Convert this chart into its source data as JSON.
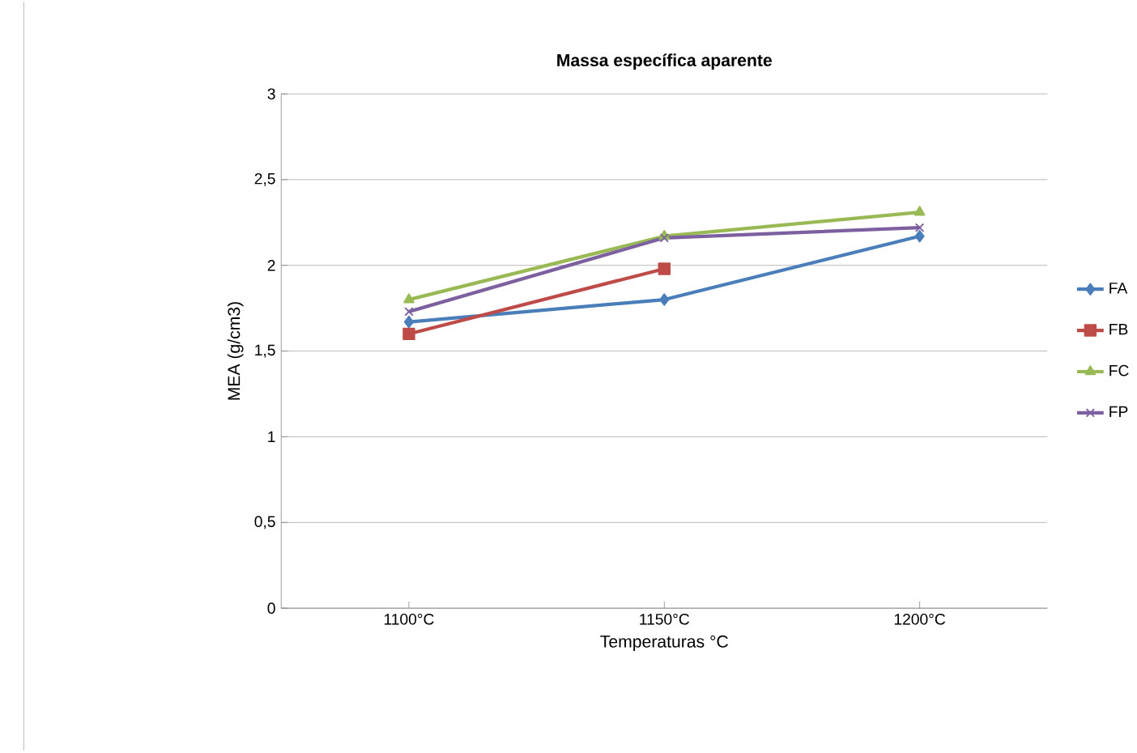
{
  "chart_data": {
    "type": "line",
    "title": "Massa específica aparente",
    "xlabel": "Temperaturas °C",
    "ylabel": "MEA (g/cm3)",
    "categories": [
      "1100°C",
      "1150°C",
      "1200°C"
    ],
    "series": [
      {
        "name": "FA",
        "color": "#4a7ebb",
        "marker": "diamond",
        "values": [
          1.67,
          1.8,
          2.17
        ]
      },
      {
        "name": "FB",
        "color": "#be4b48",
        "marker": "square",
        "values": [
          1.6,
          1.98,
          null
        ]
      },
      {
        "name": "FC",
        "color": "#98b954",
        "marker": "triangle",
        "values": [
          1.8,
          2.17,
          2.31
        ]
      },
      {
        "name": "FP",
        "color": "#7d60a0",
        "marker": "cross",
        "values": [
          1.73,
          2.16,
          2.22
        ]
      }
    ],
    "ylim": [
      0,
      3
    ],
    "yticks": [
      {
        "value": 0,
        "label": "0"
      },
      {
        "value": 0.5,
        "label": "0,5"
      },
      {
        "value": 1,
        "label": "1"
      },
      {
        "value": 1.5,
        "label": "1,5"
      },
      {
        "value": 2,
        "label": "2"
      },
      {
        "value": 2.5,
        "label": "2,5"
      },
      {
        "value": 3,
        "label": "3"
      }
    ],
    "grid": "y",
    "legend": "right"
  }
}
